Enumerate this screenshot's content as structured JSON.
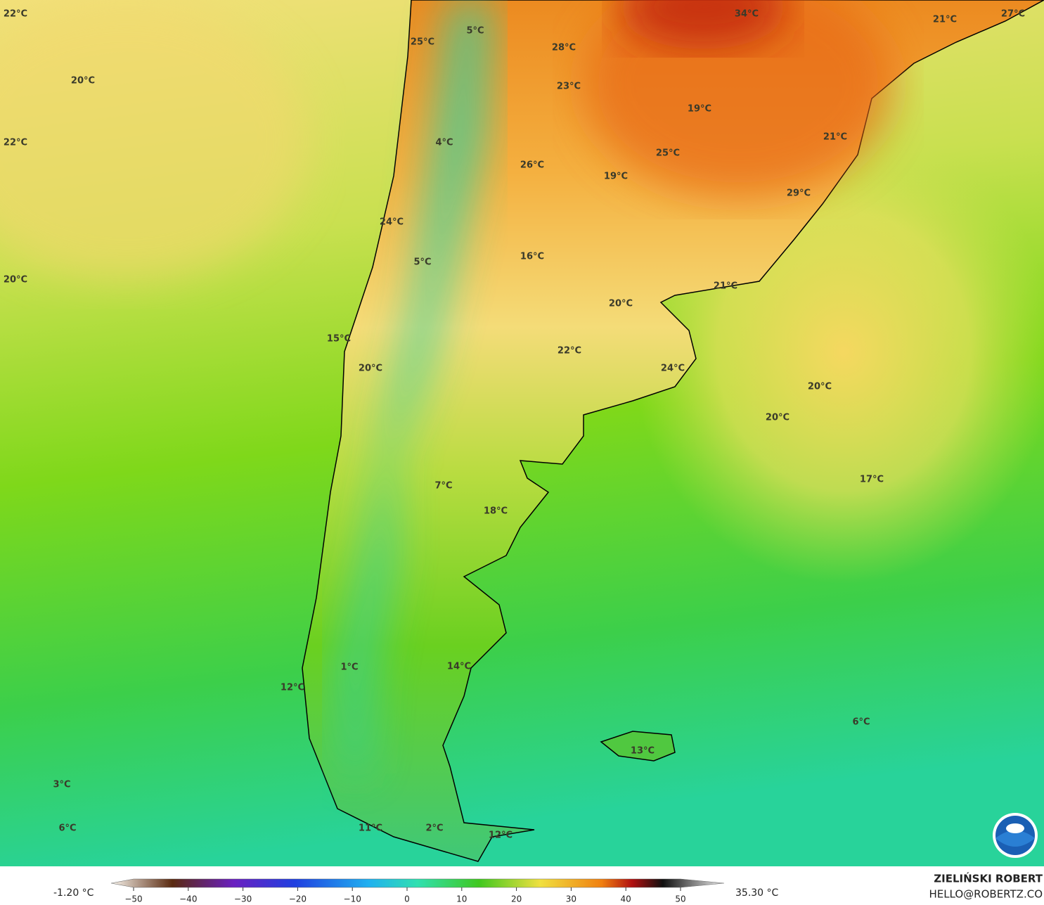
{
  "map": {
    "labels": [
      "22°C",
      "20°C",
      "22°C",
      "20°C",
      "25°C",
      "5°C",
      "28°C",
      "23°C",
      "34°C",
      "21°C",
      "27°C",
      "19°C",
      "21°C",
      "4°C",
      "26°C",
      "25°C",
      "19°C",
      "29°C",
      "24°C",
      "5°C",
      "16°C",
      "20°C",
      "21°C",
      "15°C",
      "20°C",
      "22°C",
      "24°C",
      "20°C",
      "20°C",
      "17°C",
      "7°C",
      "18°C",
      "1°C",
      "14°C",
      "12°C",
      "6°C",
      "13°C",
      "3°C",
      "6°C",
      "11°C",
      "2°C",
      "12°C"
    ]
  },
  "colorbar": {
    "min_label": "-1.20 °C",
    "max_label": "35.30 °C",
    "ticks": [
      {
        "value": -50,
        "label": "−50"
      },
      {
        "value": -40,
        "label": "−40"
      },
      {
        "value": -30,
        "label": "−30"
      },
      {
        "value": -20,
        "label": "−20"
      },
      {
        "value": -10,
        "label": "−10"
      },
      0,
      10,
      20,
      30,
      40,
      50
    ]
  },
  "credit": {
    "name": "ZIELIŃSKI ROBERT",
    "email": "HELLO@ROBERTZ.CO"
  }
}
